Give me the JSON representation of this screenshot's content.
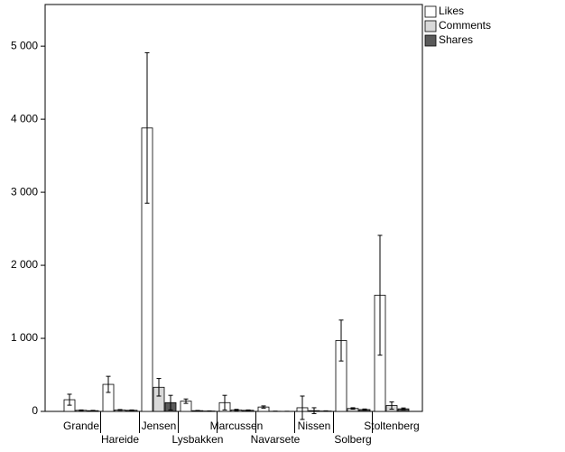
{
  "chart_data": {
    "type": "bar",
    "categories": [
      "Grande",
      "Hareide",
      "Jensen",
      "Lysbakken",
      "Marcussen",
      "Navarsete",
      "Nissen",
      "Solberg",
      "Stoltenberg"
    ],
    "series": [
      {
        "name": "Likes",
        "color": "#ffffff",
        "values": [
          160,
          370,
          3880,
          140,
          120,
          60,
          50,
          970,
          1590
        ],
        "errors": [
          75,
          110,
          1030,
          30,
          100,
          15,
          160,
          280,
          820
        ]
      },
      {
        "name": "Comments",
        "color": "#d9d9d9",
        "values": [
          15,
          20,
          330,
          10,
          20,
          2,
          10,
          40,
          80
        ],
        "errors": [
          5,
          5,
          120,
          3,
          8,
          1,
          40,
          10,
          50
        ]
      },
      {
        "name": "Shares",
        "color": "#5a5a5a",
        "values": [
          10,
          15,
          120,
          5,
          15,
          1,
          5,
          25,
          35
        ],
        "errors": [
          4,
          5,
          100,
          2,
          5,
          1,
          3,
          8,
          12
        ]
      }
    ],
    "ylim": [
      0,
      5570
    ],
    "yticks": [
      0,
      {
        "value": 1000,
        "label": "1 000"
      },
      {
        "value": 2000,
        "label": "2 000"
      },
      {
        "value": 3000,
        "label": "3 000"
      },
      {
        "value": 4000,
        "label": "4 000"
      },
      {
        "value": 5000,
        "label": "5 000"
      }
    ],
    "grid": false,
    "legend": "top-right"
  }
}
